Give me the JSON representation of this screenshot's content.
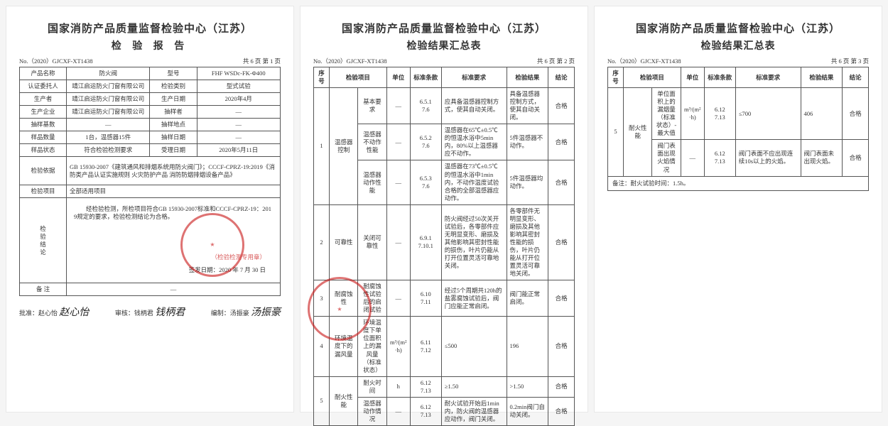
{
  "common": {
    "org": "国家消防产品质量监督检验中心（江苏）",
    "docNo": "No.（2020）GJCXF-XT1438",
    "totalPages": "共 6 页"
  },
  "page1": {
    "title": "检 验 报 告",
    "pageOf": "第 1 页",
    "rows": {
      "productNameLabel": "产品名称",
      "productName": "防火阀",
      "modelLabel": "型号",
      "model": "FHF WSDc-FK-Φ400",
      "clientLabel": "认证委托人",
      "client": "靖江启运防火门窗有限公司",
      "testCatLabel": "检验类别",
      "testCat": "型式试验",
      "producerLabel": "生产者",
      "producer": "靖江启运防火门窗有限公司",
      "prodDateLabel": "生产日期",
      "prodDate": "2020年4月",
      "mfgLabel": "生产企业",
      "mfg": "靖江启运防火门窗有限公司",
      "samplerLabel": "抽样者",
      "sampler": "—",
      "baseLabel": "抽样基数",
      "base": "—",
      "locationLabel": "抽样地点",
      "location": "—",
      "qtyLabel": "样品数量",
      "qty": "1台，温感器15件",
      "sampleDateLabel": "抽样日期",
      "sampleDate": "—",
      "stateLabel": "样品状态",
      "state": "符合检验检测要求",
      "recvDateLabel": "受理日期",
      "recvDate": "2020年5月11日",
      "basisLabel": "检验依据",
      "basis": "GB 15930-2007《建筑通风和排烟系统用防火阀门》；CCCF-CPRZ-19:2019《消防类产品认证实施规则 火灾防护产品 消防防烟排烟设备产品》",
      "itemsLabel": "检验项目",
      "items": "全部适用项目",
      "conclLabel": "检\n验\n结\n论",
      "conclText": "经检验检测，所检项目符合GB 15930-2007标准和CCCF-CPRZ-19：2019规定的要求，检验检测结论为合格。",
      "stampText": "（检验检测专用章）",
      "issueDate": "签发日期：2020 年 7 月 30 日",
      "remarkLabel": "备   注",
      "remark": "—"
    },
    "sig": {
      "approveLabel": "批准：赵心怡",
      "approveSig": "赵心怡",
      "reviewLabel": "审核：钱柄君",
      "reviewSig": "钱柄君",
      "writeLabel": "编制：汤振豪",
      "writeSig": "汤振豪"
    }
  },
  "page2": {
    "title": "检验结果汇总表",
    "pageOf": "第 2 页",
    "header": {
      "seq": "序号",
      "item": "检验项目",
      "unit": "单位",
      "std": "标准条款",
      "req": "标准要求",
      "res": "检验结果",
      "conc": "结论"
    },
    "groups": [
      {
        "seq": "1",
        "groupName": "温感器控制",
        "rows": [
          {
            "sub": "基本要求",
            "unit": "—",
            "std": "6.5.1\n7.6",
            "req": "应具备温感器控制方式，使其自动关闭。",
            "res": "具备温感器控制方式，使其自动关闭。",
            "conc": "合格"
          },
          {
            "sub": "温感器不动作性能",
            "unit": "—",
            "std": "6.5.2\n7.6",
            "req": "温感器在65℃±0.5℃的恒温水浴中5min内，80%以上温感器应不动作。",
            "res": "5件温感器不动作。",
            "conc": "合格"
          },
          {
            "sub": "温感器动作性能",
            "unit": "—",
            "std": "6.5.3\n7.6",
            "req": "温感器在73℃±0.5℃的恒温水浴中1min内，不动作温度试验合格的全部温感器应动作。",
            "res": "5件温感器均动作。",
            "conc": "合格"
          }
        ]
      },
      {
        "seq": "2",
        "groupName": "可靠性",
        "rows": [
          {
            "sub": "关闭可靠性",
            "unit": "—",
            "std": "6.9.1\n7.10.1",
            "req": "防火阀经过50次关开试验后，各零部件应无明显变形、磨损及其他影响其密封性能的损伤，叶片仍能从打开位置灵活可靠地关闭。",
            "res": "各零部件无明显变形、磨损及其他影响其密封性能的损伤，叶片仍能从打开位置灵活可靠地关闭。",
            "conc": "合格"
          }
        ]
      },
      {
        "seq": "3",
        "groupName": "耐腐蚀性",
        "rows": [
          {
            "sub": "耐腐蚀性试验后的启闭试验",
            "unit": "—",
            "std": "6.10\n7.11",
            "req": "经过5个周期共120h的盐雾腐蚀试验后，阀门应能正常启闭。",
            "res": "阀门能正常启闭。",
            "conc": "合格"
          }
        ]
      },
      {
        "seq": "4",
        "groupName": "环境温度下的漏风量",
        "rows": [
          {
            "sub": "环境温度下单位面积上的漏风量（标准状态）",
            "unit": "m³/(m²·h)",
            "std": "6.11\n7.12",
            "req": "≤500",
            "res": "196",
            "conc": "合格"
          }
        ]
      },
      {
        "seq": "5",
        "groupName": "耐火性能",
        "rows": [
          {
            "sub": "耐火时间",
            "unit": "h",
            "std": "6.12\n7.13",
            "req": "≥1.50",
            "res": ">1.50",
            "conc": "合格"
          },
          {
            "sub": "温感器动作情况",
            "unit": "—",
            "std": "6.12\n7.13",
            "req": "耐火试验开始后1min内，防火阀的温感器应动作，阀门关闭。",
            "res": "0.2min阀门自动关闭。",
            "conc": "合格"
          }
        ]
      }
    ]
  },
  "page3": {
    "title": "检验结果汇总表",
    "pageOf": "第 3 页",
    "header": {
      "seq": "序号",
      "item": "检验项目",
      "unit": "单位",
      "std": "标准条款",
      "req": "标准要求",
      "res": "检验结果",
      "conc": "结论"
    },
    "groups": [
      {
        "seq": "5",
        "groupName": "耐火性能",
        "rows": [
          {
            "sub": "单位面积上的漏烟量（标准状态）-最大值",
            "unit": "m³/(m²·h)",
            "std": "6.12\n7.13",
            "req": "≤700",
            "res": "406",
            "conc": "合格"
          },
          {
            "sub": "阀门表面出现火焰情况",
            "unit": "—",
            "std": "6.12\n7.13",
            "req": "阀门表面不应出现连续10s以上的火焰。",
            "res": "阀门表面未出现火焰。",
            "conc": "合格"
          }
        ]
      }
    ],
    "note": "备注：耐火试验时间：1.5h。"
  },
  "style": {
    "borderColor": "#555555",
    "stampColor": "rgba(200,20,20,0.6)",
    "bg": "#ffffff"
  }
}
